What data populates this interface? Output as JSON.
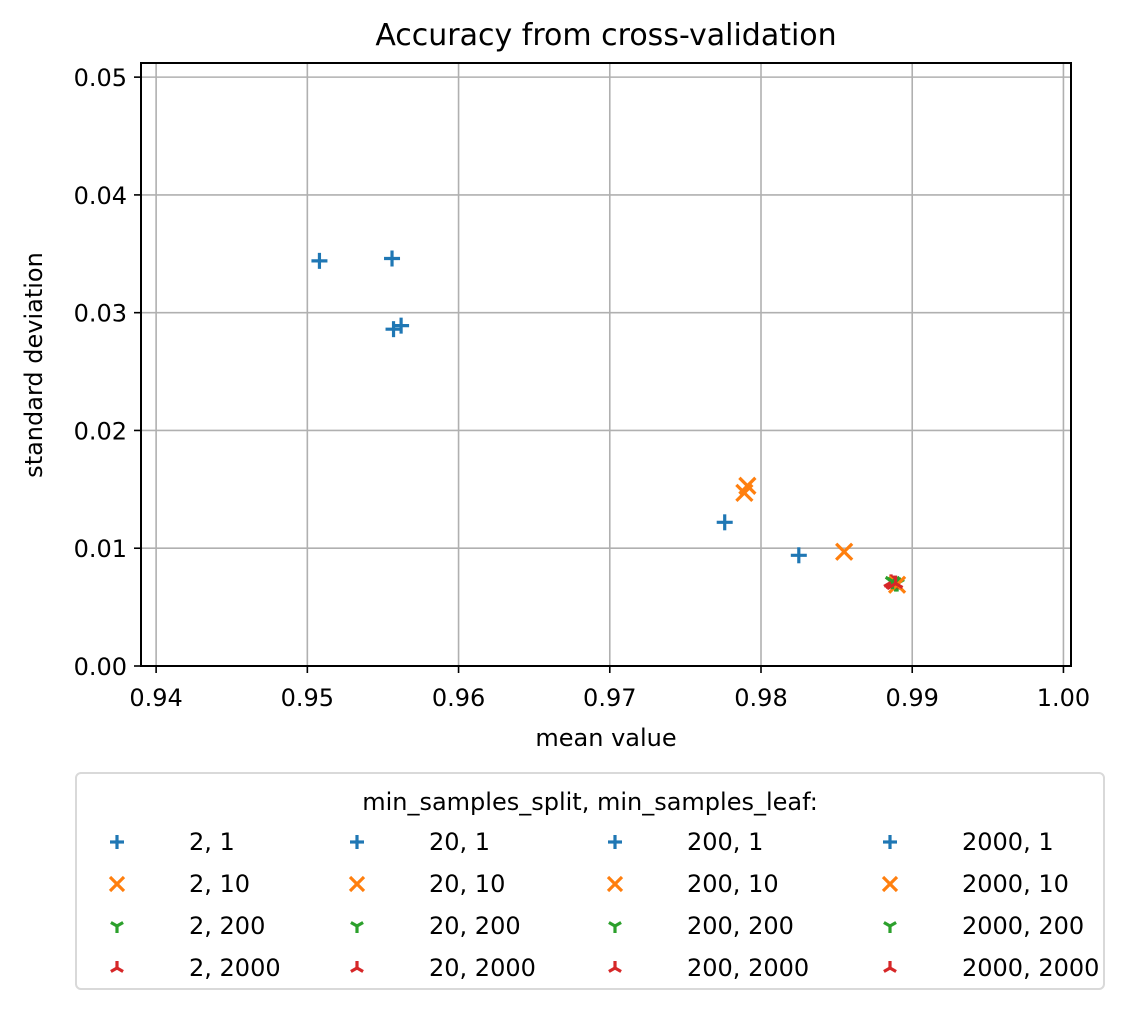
{
  "chart_data": {
    "type": "scatter",
    "title": "Accuracy from cross-validation",
    "xlabel": "mean value",
    "ylabel": "standard deviation",
    "xlim": [
      0.939,
      1.0005
    ],
    "ylim": [
      0.0,
      0.0512
    ],
    "xticks": [
      "0.94",
      "0.95",
      "0.96",
      "0.97",
      "0.98",
      "0.99",
      "1.00"
    ],
    "yticks": [
      "0.00",
      "0.01",
      "0.02",
      "0.03",
      "0.04",
      "0.05"
    ],
    "grid": true,
    "legend_title": "min_samples_split, min_samples_leaf:",
    "legend_position": "below",
    "marker_colors": {
      "1": "#1f77b4",
      "10": "#ff7f0e",
      "200": "#2ca02c",
      "2000": "#d62728"
    },
    "marker_shapes": {
      "1": "plus",
      "10": "x",
      "200": "tri-down",
      "2000": "tri-up"
    },
    "series": [
      {
        "name": "2, 1",
        "leaf": "1",
        "points": [
          [
            0.9508,
            0.0344
          ]
        ]
      },
      {
        "name": "2, 10",
        "leaf": "10",
        "points": [
          [
            0.9789,
            0.0147
          ]
        ]
      },
      {
        "name": "2, 200",
        "leaf": "200",
        "points": [
          [
            0.9888,
            0.0071
          ]
        ]
      },
      {
        "name": "2, 2000",
        "leaf": "2000",
        "points": [
          [
            0.9887,
            0.007
          ]
        ]
      },
      {
        "name": "20, 1",
        "leaf": "1",
        "points": [
          [
            0.9556,
            0.0346
          ]
        ]
      },
      {
        "name": "20, 10",
        "leaf": "10",
        "points": [
          [
            0.9791,
            0.0153
          ]
        ]
      },
      {
        "name": "20, 200",
        "leaf": "200",
        "points": [
          [
            0.9889,
            0.007
          ]
        ]
      },
      {
        "name": "20, 2000",
        "leaf": "2000",
        "points": [
          [
            0.9886,
            0.0071
          ]
        ]
      },
      {
        "name": "200, 1",
        "leaf": "1",
        "points": [
          [
            0.9557,
            0.0286
          ],
          [
            0.9776,
            0.0122
          ]
        ]
      },
      {
        "name": "200, 10",
        "leaf": "10",
        "points": [
          [
            0.9855,
            0.0097
          ]
        ]
      },
      {
        "name": "200, 200",
        "leaf": "200",
        "points": [
          [
            0.989,
            0.007
          ]
        ]
      },
      {
        "name": "200, 2000",
        "leaf": "2000",
        "points": [
          [
            0.9888,
            0.0069
          ]
        ]
      },
      {
        "name": "2000, 1",
        "leaf": "1",
        "points": [
          [
            0.9562,
            0.0289
          ],
          [
            0.9825,
            0.0094
          ]
        ]
      },
      {
        "name": "2000, 10",
        "leaf": "10",
        "points": [
          [
            0.989,
            0.0069
          ]
        ]
      },
      {
        "name": "2000, 200",
        "leaf": "200",
        "points": [
          [
            0.9887,
            0.0072
          ]
        ]
      },
      {
        "name": "2000, 2000",
        "leaf": "2000",
        "points": [
          [
            0.9889,
            0.007
          ]
        ]
      }
    ]
  }
}
